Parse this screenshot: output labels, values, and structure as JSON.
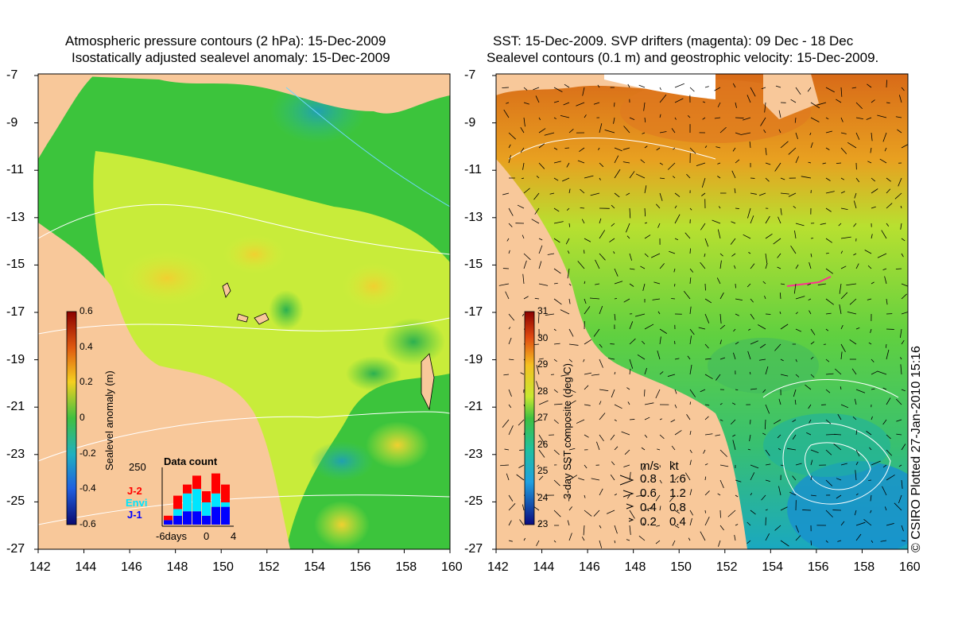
{
  "left_panel": {
    "title_line1": "Atmospheric pressure contours (2 hPa): 15-Dec-2009",
    "title_line2": "Isostatically adjusted sealevel anomaly: 15-Dec-2009",
    "y_ticks": [
      "-7",
      "-9",
      "-11",
      "-13",
      "-15",
      "-17",
      "-19",
      "-21",
      "-23",
      "-25",
      "-27"
    ],
    "x_ticks": [
      "142",
      "144",
      "146",
      "148",
      "150",
      "152",
      "154",
      "156",
      "158",
      "160"
    ],
    "colorbar": {
      "label": "Sealevel anomaly (m)",
      "ticks": [
        "0.6",
        "0.4",
        "0.2",
        "0",
        "-0.2",
        "-0.4",
        "-0.6"
      ]
    },
    "data_count": {
      "title": "Data count",
      "ymax_label": "250",
      "x_labels": [
        "-6days",
        "0",
        "4"
      ],
      "legend": [
        {
          "label": "J-2",
          "color": "#ff0000"
        },
        {
          "label": "Envi",
          "color": "#00e5ff"
        },
        {
          "label": "J-1",
          "color": "#0000ff"
        }
      ],
      "bars": [
        {
          "j1": 20,
          "envi": 0,
          "j2": 20
        },
        {
          "j1": 40,
          "envi": 30,
          "j2": 60
        },
        {
          "j1": 60,
          "envi": 80,
          "j2": 40
        },
        {
          "j1": 60,
          "envi": 100,
          "j2": 60
        },
        {
          "j1": 40,
          "envi": 60,
          "j2": 50
        },
        {
          "j1": 80,
          "envi": 60,
          "j2": 90
        },
        {
          "j1": 80,
          "envi": 20,
          "j2": 80
        }
      ]
    }
  },
  "right_panel": {
    "title_line1": "SST: 15-Dec-2009. SVP drifters (magenta): 09 Dec - 18 Dec",
    "title_line2": "Sealevel contours (0.1 m) and geostrophic velocity: 15-Dec-2009.",
    "y_ticks": [
      "-7",
      "-9",
      "-11",
      "-13",
      "-15",
      "-17",
      "-19",
      "-21",
      "-23",
      "-25",
      "-27"
    ],
    "x_ticks": [
      "142",
      "144",
      "146",
      "148",
      "150",
      "152",
      "154",
      "156",
      "158",
      "160"
    ],
    "colorbar": {
      "label": "3-day SST composite (deg C)",
      "ticks": [
        "31",
        "30",
        "29",
        "28",
        "27",
        "26",
        "25",
        "24",
        "23"
      ]
    },
    "speed_legend": {
      "header_ms": "m/s",
      "header_kt": "kt",
      "rows": [
        {
          "ms": "0.8",
          "kt": "1.6"
        },
        {
          "ms": "0.6",
          "kt": "1.2"
        },
        {
          "ms": "0.4",
          "kt": "0.8"
        },
        {
          "ms": "0.2",
          "kt": "0.4"
        }
      ]
    }
  },
  "copyright": "© CSIRO Plotted 27-Jan-2010 15:16",
  "colors": {
    "land": "#f8c89a",
    "sla_green": "#3cc43c",
    "sla_yellow": "#d4ef3a",
    "sst_orange": "#e8901a",
    "sst_green": "#5ed23a",
    "sst_teal": "#1fb8a8"
  }
}
